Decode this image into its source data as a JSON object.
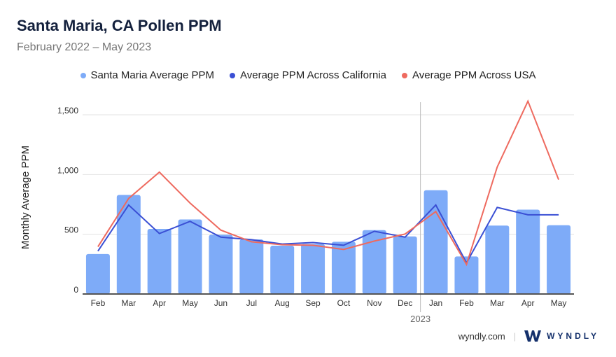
{
  "chart_data": {
    "type": "bar",
    "title": "Santa Maria, CA Pollen PPM",
    "subtitle": "February 2022 – May 2023",
    "ylabel": "Monthly Average PPM",
    "xlabel": "",
    "ylim": [
      0,
      1500
    ],
    "yticks": [
      0,
      500,
      1000,
      1500
    ],
    "ytick_labels": [
      "0",
      "500",
      "1,000",
      "1,500"
    ],
    "categories": [
      "Feb",
      "Mar",
      "Apr",
      "May",
      "Jun",
      "Jul",
      "Aug",
      "Sep",
      "Oct",
      "Nov",
      "Dec",
      "Jan",
      "Feb",
      "Mar",
      "Apr",
      "May"
    ],
    "year_marker": {
      "label": "2023",
      "before_index": 11
    },
    "legend_position": "top-center",
    "grid": true,
    "series": [
      {
        "name": "Santa Maria Average PPM",
        "kind": "bar",
        "color": "#7eabf8",
        "values": [
          335,
          829,
          545,
          624,
          496,
          457,
          404,
          418,
          437,
          535,
          482,
          869,
          314,
          573,
          706,
          576
        ]
      },
      {
        "name": "Average PPM Across California",
        "kind": "line",
        "color": "#3a4fd4",
        "values": [
          359,
          745,
          506,
          608,
          476,
          455,
          418,
          431,
          408,
          525,
          476,
          745,
          261,
          725,
          663,
          663
        ]
      },
      {
        "name": "Average PPM Across USA",
        "kind": "line",
        "color": "#ee6a5f",
        "values": [
          396,
          800,
          1020,
          761,
          535,
          437,
          412,
          408,
          373,
          443,
          502,
          690,
          247,
          1063,
          1614,
          957
        ]
      }
    ]
  },
  "footer": {
    "site": "wyndly.com",
    "brand": "WYNDLY"
  }
}
